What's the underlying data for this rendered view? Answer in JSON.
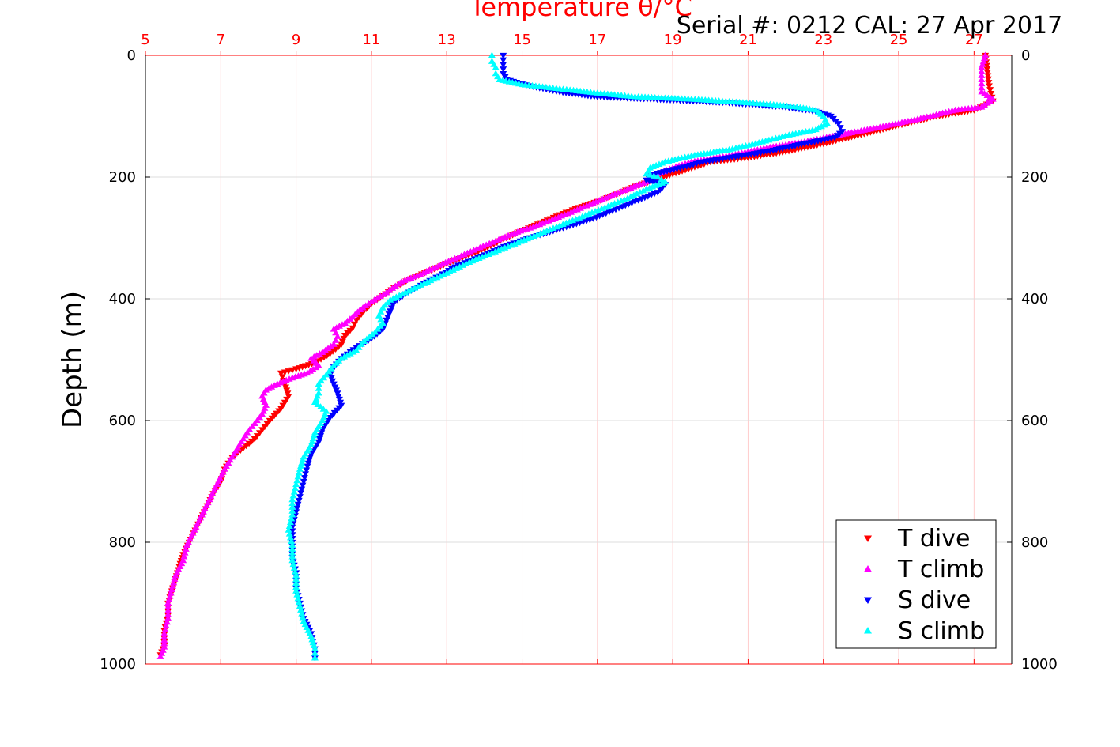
{
  "chart_data": {
    "type": "scatter",
    "title": "",
    "subtitle": "Serial #: 0212  CAL: 27 Apr 2017",
    "xlabel": "Temperature θ/°C",
    "ylabel": "Depth (m)",
    "xlim": [
      5,
      28
    ],
    "ylim": [
      0,
      1000
    ],
    "y_reversed": true,
    "xticks": [
      "5",
      "7",
      "9",
      "11",
      "13",
      "15",
      "17",
      "19",
      "21",
      "23",
      "25",
      "27"
    ],
    "yticks_left": [
      "0",
      "200",
      "400",
      "600",
      "800",
      "1000"
    ],
    "yticks_right": [
      "0",
      "200",
      "400",
      "600",
      "800",
      "1000"
    ],
    "grid": true,
    "legend_position": "bottom-right",
    "series": [
      {
        "name": "T dive",
        "color": "#ff0000",
        "marker": "triangle-down",
        "points": [
          [
            27.3,
            0
          ],
          [
            27.4,
            50
          ],
          [
            27.5,
            75
          ],
          [
            27.0,
            90
          ],
          [
            26.0,
            100
          ],
          [
            25.0,
            115
          ],
          [
            24.0,
            130
          ],
          [
            23.0,
            145
          ],
          [
            22.0,
            158
          ],
          [
            21.0,
            168
          ],
          [
            20.0,
            175
          ],
          [
            19.5,
            185
          ],
          [
            19.0,
            195
          ],
          [
            18.5,
            205
          ],
          [
            18.0,
            215
          ],
          [
            17.5,
            228
          ],
          [
            17.0,
            240
          ],
          [
            16.5,
            250
          ],
          [
            16.0,
            262
          ],
          [
            15.5,
            275
          ],
          [
            15.0,
            288
          ],
          [
            14.5,
            302
          ],
          [
            14.0,
            318
          ],
          [
            13.5,
            330
          ],
          [
            13.0,
            342
          ],
          [
            12.5,
            355
          ],
          [
            12.0,
            368
          ],
          [
            11.6,
            382
          ],
          [
            11.3,
            395
          ],
          [
            11.0,
            408
          ],
          [
            10.8,
            420
          ],
          [
            10.6,
            435
          ],
          [
            10.5,
            448
          ],
          [
            10.3,
            460
          ],
          [
            10.2,
            475
          ],
          [
            9.9,
            490
          ],
          [
            9.5,
            505
          ],
          [
            9.0,
            515
          ],
          [
            8.6,
            522
          ],
          [
            8.7,
            540
          ],
          [
            8.8,
            560
          ],
          [
            8.6,
            580
          ],
          [
            8.3,
            600
          ],
          [
            8.1,
            615
          ],
          [
            7.9,
            630
          ],
          [
            7.6,
            645
          ],
          [
            7.3,
            660
          ],
          [
            7.1,
            680
          ],
          [
            7.0,
            700
          ],
          [
            6.8,
            720
          ],
          [
            6.6,
            745
          ],
          [
            6.4,
            770
          ],
          [
            6.2,
            795
          ],
          [
            6.0,
            820
          ],
          [
            5.9,
            840
          ],
          [
            5.8,
            860
          ],
          [
            5.7,
            880
          ],
          [
            5.6,
            900
          ],
          [
            5.6,
            920
          ],
          [
            5.5,
            945
          ],
          [
            5.5,
            970
          ],
          [
            5.4,
            985
          ]
        ]
      },
      {
        "name": "T climb",
        "color": "#ff00ff",
        "marker": "triangle-up",
        "points": [
          [
            27.3,
            0
          ],
          [
            27.2,
            20
          ],
          [
            27.2,
            40
          ],
          [
            27.2,
            60
          ],
          [
            27.5,
            72
          ],
          [
            27.2,
            85
          ],
          [
            26.5,
            90
          ],
          [
            25.5,
            105
          ],
          [
            24.5,
            118
          ],
          [
            23.5,
            130
          ],
          [
            22.5,
            142
          ],
          [
            21.5,
            152
          ],
          [
            20.5,
            165
          ],
          [
            19.5,
            175
          ],
          [
            19.0,
            185
          ],
          [
            18.6,
            195
          ],
          [
            18.3,
            208
          ],
          [
            17.8,
            220
          ],
          [
            17.3,
            232
          ],
          [
            16.8,
            245
          ],
          [
            16.3,
            258
          ],
          [
            15.8,
            270
          ],
          [
            15.3,
            282
          ],
          [
            14.8,
            292
          ],
          [
            14.3,
            305
          ],
          [
            13.8,
            318
          ],
          [
            13.3,
            332
          ],
          [
            12.8,
            345
          ],
          [
            12.3,
            360
          ],
          [
            11.8,
            372
          ],
          [
            11.4,
            390
          ],
          [
            11.0,
            405
          ],
          [
            10.7,
            418
          ],
          [
            10.5,
            430
          ],
          [
            10.3,
            440
          ],
          [
            10.0,
            450
          ],
          [
            10.1,
            462
          ],
          [
            10.0,
            475
          ],
          [
            9.7,
            488
          ],
          [
            9.4,
            498
          ],
          [
            9.6,
            510
          ],
          [
            9.3,
            522
          ],
          [
            8.9,
            530
          ],
          [
            8.5,
            540
          ],
          [
            8.2,
            550
          ],
          [
            8.1,
            560
          ],
          [
            8.2,
            575
          ],
          [
            8.1,
            590
          ],
          [
            7.9,
            605
          ],
          [
            7.7,
            620
          ],
          [
            7.5,
            640
          ],
          [
            7.3,
            660
          ],
          [
            7.1,
            680
          ],
          [
            6.9,
            705
          ],
          [
            6.7,
            730
          ],
          [
            6.5,
            755
          ],
          [
            6.3,
            780
          ],
          [
            6.1,
            805
          ],
          [
            6.0,
            830
          ],
          [
            5.8,
            855
          ],
          [
            5.7,
            878
          ],
          [
            5.6,
            900
          ],
          [
            5.6,
            925
          ],
          [
            5.5,
            950
          ],
          [
            5.5,
            972
          ],
          [
            5.4,
            988
          ]
        ]
      },
      {
        "name": "S dive",
        "color": "#0000ff",
        "marker": "triangle-down",
        "points": [
          [
            14.5,
            0
          ],
          [
            14.5,
            15
          ],
          [
            14.5,
            30
          ],
          [
            14.6,
            40
          ],
          [
            15.2,
            50
          ],
          [
            16.0,
            60
          ],
          [
            17.0,
            68
          ],
          [
            18.5,
            72
          ],
          [
            20.5,
            78
          ],
          [
            22.0,
            85
          ],
          [
            22.8,
            92
          ],
          [
            23.2,
            100
          ],
          [
            23.4,
            112
          ],
          [
            23.5,
            125
          ],
          [
            23.3,
            135
          ],
          [
            22.5,
            145
          ],
          [
            21.5,
            158
          ],
          [
            20.5,
            168
          ],
          [
            19.8,
            175
          ],
          [
            19.2,
            185
          ],
          [
            18.5,
            195
          ],
          [
            18.3,
            205
          ],
          [
            18.8,
            212
          ],
          [
            18.6,
            225
          ],
          [
            18.0,
            240
          ],
          [
            17.4,
            255
          ],
          [
            16.8,
            270
          ],
          [
            16.0,
            285
          ],
          [
            15.3,
            298
          ],
          [
            14.6,
            312
          ],
          [
            14.0,
            328
          ],
          [
            13.3,
            345
          ],
          [
            12.8,
            362
          ],
          [
            12.3,
            378
          ],
          [
            11.9,
            392
          ],
          [
            11.6,
            405
          ],
          [
            11.5,
            420
          ],
          [
            11.4,
            435
          ],
          [
            11.3,
            450
          ],
          [
            11.0,
            465
          ],
          [
            10.6,
            480
          ],
          [
            10.2,
            498
          ],
          [
            10.0,
            512
          ],
          [
            9.9,
            525
          ],
          [
            10.0,
            540
          ],
          [
            10.1,
            555
          ],
          [
            10.2,
            575
          ],
          [
            9.9,
            595
          ],
          [
            9.7,
            615
          ],
          [
            9.6,
            635
          ],
          [
            9.4,
            655
          ],
          [
            9.3,
            675
          ],
          [
            9.2,
            700
          ],
          [
            9.1,
            725
          ],
          [
            9.0,
            750
          ],
          [
            8.9,
            775
          ],
          [
            8.9,
            800
          ],
          [
            8.9,
            825
          ],
          [
            9.0,
            850
          ],
          [
            9.0,
            875
          ],
          [
            9.1,
            900
          ],
          [
            9.2,
            925
          ],
          [
            9.4,
            950
          ],
          [
            9.5,
            975
          ],
          [
            9.5,
            990
          ]
        ]
      },
      {
        "name": "S climb",
        "color": "#00ffff",
        "marker": "triangle-up",
        "points": [
          [
            14.2,
            0
          ],
          [
            14.2,
            10
          ],
          [
            14.3,
            20
          ],
          [
            14.3,
            30
          ],
          [
            14.4,
            40
          ],
          [
            15.0,
            48
          ],
          [
            16.0,
            55
          ],
          [
            17.0,
            62
          ],
          [
            18.0,
            68
          ],
          [
            19.5,
            72
          ],
          [
            20.5,
            76
          ],
          [
            21.5,
            80
          ],
          [
            22.3,
            85
          ],
          [
            22.8,
            90
          ],
          [
            23.0,
            100
          ],
          [
            23.1,
            112
          ],
          [
            22.8,
            122
          ],
          [
            22.0,
            132
          ],
          [
            21.2,
            145
          ],
          [
            20.5,
            155
          ],
          [
            19.5,
            165
          ],
          [
            18.8,
            175
          ],
          [
            18.4,
            185
          ],
          [
            18.3,
            195
          ],
          [
            18.6,
            200
          ],
          [
            18.8,
            208
          ],
          [
            18.3,
            220
          ],
          [
            17.8,
            235
          ],
          [
            17.2,
            250
          ],
          [
            16.6,
            265
          ],
          [
            16.0,
            280
          ],
          [
            15.4,
            295
          ],
          [
            14.8,
            310
          ],
          [
            14.2,
            325
          ],
          [
            13.6,
            340
          ],
          [
            13.0,
            358
          ],
          [
            12.4,
            375
          ],
          [
            11.9,
            390
          ],
          [
            11.5,
            402
          ],
          [
            11.3,
            415
          ],
          [
            11.2,
            428
          ],
          [
            11.3,
            440
          ],
          [
            11.1,
            455
          ],
          [
            10.8,
            470
          ],
          [
            10.6,
            485
          ],
          [
            10.2,
            498
          ],
          [
            10.0,
            510
          ],
          [
            9.8,
            525
          ],
          [
            9.6,
            540
          ],
          [
            9.6,
            555
          ],
          [
            9.5,
            570
          ],
          [
            9.8,
            585
          ],
          [
            9.7,
            600
          ],
          [
            9.5,
            620
          ],
          [
            9.4,
            640
          ],
          [
            9.2,
            660
          ],
          [
            9.1,
            680
          ],
          [
            9.0,
            705
          ],
          [
            8.9,
            730
          ],
          [
            8.9,
            755
          ],
          [
            8.8,
            780
          ],
          [
            8.9,
            805
          ],
          [
            8.9,
            830
          ],
          [
            9.0,
            855
          ],
          [
            9.0,
            880
          ],
          [
            9.1,
            905
          ],
          [
            9.2,
            930
          ],
          [
            9.4,
            955
          ],
          [
            9.5,
            975
          ],
          [
            9.5,
            990
          ]
        ]
      }
    ]
  }
}
